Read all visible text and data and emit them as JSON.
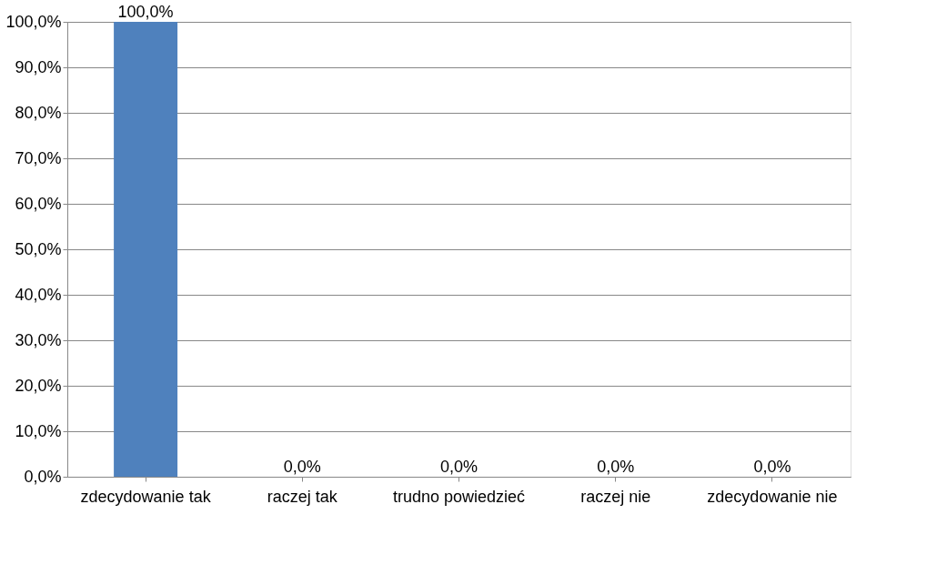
{
  "chart_data": {
    "type": "bar",
    "categories": [
      "zdecydowanie tak",
      "raczej tak",
      "trudno powiedzieć",
      "raczej nie",
      "zdecydowanie nie"
    ],
    "values": [
      100,
      0,
      0,
      0,
      0
    ],
    "value_labels": [
      "100,0%",
      "0,0%",
      "0,0%",
      "0,0%",
      "0,0%"
    ],
    "color": "#4f81bd",
    "ylim": [
      0,
      100
    ],
    "yticks": [
      {
        "value": 0,
        "label": "0,0%"
      },
      {
        "value": 10,
        "label": "10,0%"
      },
      {
        "value": 20,
        "label": "20,0%"
      },
      {
        "value": 30,
        "label": "30,0%"
      },
      {
        "value": 40,
        "label": "40,0%"
      },
      {
        "value": 50,
        "label": "50,0%"
      },
      {
        "value": 60,
        "label": "60,0%"
      },
      {
        "value": 70,
        "label": "70,0%"
      },
      {
        "value": 80,
        "label": "80,0%"
      },
      {
        "value": 90,
        "label": "90,0%"
      },
      {
        "value": 100,
        "label": "100,0%"
      }
    ],
    "grid": "y"
  }
}
